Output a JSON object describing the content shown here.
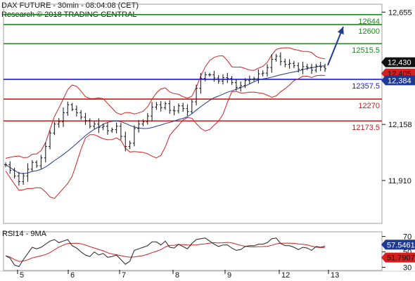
{
  "header": {
    "line1": "DAX FUTURE - 30min - 08:04:08 (CET)",
    "line2": "Research © 2018 TRADING CENTRAL"
  },
  "chart_data": [
    {
      "type": "candlestick",
      "ylim": [
        11720,
        12690
      ],
      "y_ticks": [
        {
          "value": 12655,
          "label": "12,655"
        },
        {
          "value": 12158,
          "label": "12,158"
        },
        {
          "value": 11910,
          "label": "11,910"
        }
      ],
      "x_ticks": [
        "5",
        "6",
        "7",
        "8",
        "9",
        "12",
        "13"
      ],
      "grid": false,
      "levels": [
        {
          "value": 12644,
          "label": "12644",
          "color": "#1a8c1a"
        },
        {
          "value": 12600,
          "label": "12600",
          "color": "#1a8c1a"
        },
        {
          "value": 12515.5,
          "label": "12515.5",
          "color": "#1a8c1a"
        },
        {
          "value": 12357.5,
          "label": "12357.5",
          "color": "#1a1acc"
        },
        {
          "value": 12270,
          "label": "12270",
          "color": "#cc1a1a"
        },
        {
          "value": 12173.5,
          "label": "12173.5",
          "color": "#cc1a1a"
        }
      ],
      "price_badges": [
        {
          "value": 12430,
          "label": "12,430",
          "bg": "#111111",
          "fg": "#ffffff"
        },
        {
          "value": 12405,
          "label": "12,405",
          "bg": "#d42020",
          "fg": "#111111"
        },
        {
          "value": 12384,
          "label": "12,384",
          "bg": "#1f3a93",
          "fg": "#ffffff"
        }
      ],
      "close_series": [
        11980,
        11955,
        11930,
        11905,
        11930,
        11960,
        11990,
        11975,
        12010,
        12060,
        12120,
        12160,
        12170,
        12210,
        12245,
        12225,
        12210,
        12190,
        12175,
        12150,
        12160,
        12145,
        12150,
        12130,
        12135,
        12150,
        12105,
        12060,
        12075,
        12140,
        12160,
        12170,
        12195,
        12235,
        12245,
        12232,
        12250,
        12220,
        12218,
        12240,
        12228,
        12215,
        12258,
        12318,
        12362,
        12378,
        12378,
        12364,
        12350,
        12365,
        12362,
        12343,
        12322,
        12330,
        12352,
        12358,
        12360,
        12382,
        12385,
        12410,
        12446,
        12460,
        12436,
        12424,
        12428,
        12418,
        12402,
        12414,
        12410,
        12398,
        12416,
        12412,
        12405
      ],
      "colors": {
        "price": "#222222",
        "bollinger": "#d42020",
        "ma": "#1f3a93"
      },
      "arrow": {
        "color": "#1f3a93",
        "from": [
          12420,
          0
        ],
        "to": [
          12590,
          0
        ]
      }
    },
    {
      "type": "line",
      "title": "RSI14 - 9MA",
      "ylim": [
        26,
        76
      ],
      "y_ticks": [
        {
          "value": 70,
          "label": "70"
        },
        {
          "value": 50,
          "label": "50"
        },
        {
          "value": 30,
          "label": "30"
        }
      ],
      "series": [
        {
          "name": "RSI14",
          "color": "#222222"
        },
        {
          "name": "9MA",
          "color": "#d42020"
        }
      ],
      "rsi_values": [
        45,
        42,
        33,
        31,
        40,
        48,
        56,
        54,
        56,
        60,
        64,
        66,
        62,
        64,
        66,
        58,
        55,
        50,
        46,
        44,
        50,
        46,
        48,
        43,
        44,
        46,
        40,
        34,
        38,
        52,
        54,
        56,
        58,
        63,
        63,
        59,
        64,
        56,
        55,
        60,
        57,
        54,
        61,
        66,
        67,
        68,
        64,
        60,
        57,
        59,
        59,
        55,
        52,
        53,
        57,
        58,
        58,
        60,
        60,
        62,
        67,
        68,
        61,
        58,
        58,
        56,
        53,
        56,
        55,
        52,
        57,
        56,
        57.5
      ],
      "badges": [
        {
          "value": 57.5461,
          "label": "57.5461",
          "bg": "#1f3a93",
          "fg": "#ffffff"
        },
        {
          "value": 51.7907,
          "label": "51.7907",
          "bg": "#d42020",
          "fg": "#111111"
        }
      ]
    }
  ]
}
